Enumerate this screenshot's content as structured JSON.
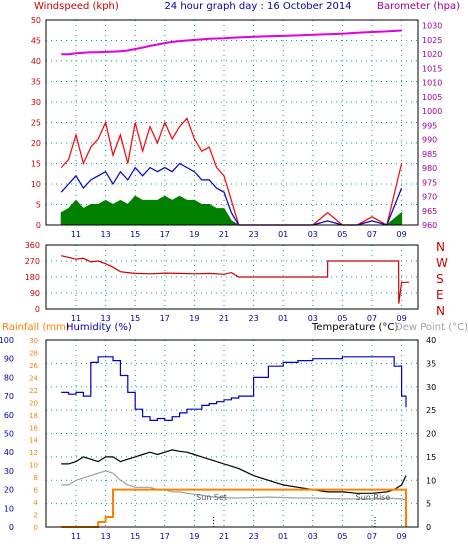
{
  "header": {
    "left_label": "Windspeed (kph)",
    "center_title": "24 hour graph day : 16 October 2014",
    "right_label": "Barometer (hpa)"
  },
  "colors": {
    "wind_gust": "#ff0000",
    "wind_avg": "#0000cc",
    "wind_low": "#008000",
    "barometer": "#e000e0",
    "direction": "#cc0000",
    "rainfall": "#ff8000",
    "humidity": "#0000cc",
    "temperature": "#000000",
    "dewpoint": "#a0a0a0",
    "grid": "#00a0a0",
    "axis_red": "#cc0000",
    "axis_blue": "#0000aa",
    "axis_purple": "#990099"
  },
  "chart_data": [
    {
      "type": "line",
      "x_tick_labels": [
        "11",
        "13",
        "15",
        "17",
        "19",
        "21",
        "23",
        "01",
        "03",
        "05",
        "07",
        "09"
      ],
      "x": [
        10,
        10.5,
        11,
        11.5,
        12,
        12.5,
        13,
        13.5,
        14,
        14.5,
        15,
        15.5,
        16,
        16.5,
        17,
        17.5,
        18,
        18.5,
        19,
        19.5,
        20,
        20.5,
        21,
        21.5,
        22,
        23,
        24,
        25,
        26,
        27,
        28,
        29,
        30,
        31,
        32,
        33
      ],
      "left_axis": {
        "title": "Windspeed (kph)",
        "ylim": [
          0,
          50
        ],
        "ticks": [
          0,
          5,
          10,
          15,
          20,
          25,
          30,
          35,
          40,
          45,
          50
        ]
      },
      "right_axis": {
        "title": "Barometer (hpa)",
        "ylim": [
          960,
          1032
        ],
        "ticks": [
          960,
          965,
          970,
          975,
          980,
          985,
          990,
          995,
          1000,
          1005,
          1010,
          1015,
          1020,
          1025,
          1030
        ]
      },
      "series": [
        {
          "values": [
            14,
            16,
            22,
            15,
            19,
            21,
            25,
            17,
            22,
            15,
            25,
            18,
            24,
            20,
            25,
            21,
            24,
            26,
            21,
            18,
            19,
            14,
            12,
            6,
            0,
            0,
            0,
            0,
            0,
            0,
            3,
            0,
            0,
            2,
            0,
            15
          ]
        },
        {
          "values": [
            8,
            10,
            12,
            9,
            11,
            12,
            13,
            10,
            13,
            11,
            14,
            12,
            14,
            13,
            14,
            13,
            15,
            14,
            13,
            11,
            11,
            9,
            8,
            3,
            0,
            0,
            0,
            0,
            0,
            0,
            1,
            0,
            0,
            1,
            0,
            9
          ]
        },
        {
          "values": [
            3,
            4,
            6,
            4,
            5,
            5,
            6,
            5,
            6,
            5,
            7,
            6,
            6,
            6,
            7,
            6,
            7,
            6,
            6,
            5,
            5,
            4,
            4,
            1,
            0,
            0,
            0,
            0,
            0,
            0,
            0,
            0,
            0,
            0,
            0,
            3
          ]
        },
        {
          "values": [
            1020.0,
            1020.0,
            1020.3,
            1020.5,
            1020.7,
            1020.7,
            1020.8,
            1020.9,
            1021.0,
            1021.3,
            1021.8,
            1022.3,
            1022.9,
            1023.4,
            1023.9,
            1024.3,
            1024.6,
            1024.8,
            1025.0,
            1025.2,
            1025.4,
            1025.5,
            1025.6,
            1025.8,
            1025.9,
            1026.1,
            1026.3,
            1026.4,
            1026.6,
            1026.8,
            1027.0,
            1027.2,
            1027.5,
            1027.8,
            1028.0,
            1028.3
          ]
        }
      ]
    },
    {
      "type": "line",
      "x_tick_labels": [
        "11",
        "13",
        "15",
        "17",
        "19",
        "21",
        "23",
        "01",
        "03",
        "05",
        "07",
        "09"
      ],
      "left_axis": {
        "ylim": [
          0,
          360
        ],
        "ticks": [
          0,
          90,
          180,
          270,
          360
        ]
      },
      "right_axis": {
        "tick_labels": [
          "N",
          "W",
          "S",
          "E",
          "N"
        ]
      },
      "series": [
        {
          "x": [
            10,
            10.5,
            11,
            11.5,
            12,
            12.5,
            13,
            13.5,
            14,
            14.5,
            15,
            16,
            17,
            18,
            19,
            20,
            21,
            21.5,
            22,
            23,
            24,
            25,
            26,
            27,
            28,
            28.01,
            29,
            30,
            31,
            32,
            32.8,
            32.81,
            33,
            33.5
          ],
          "values": [
            300,
            290,
            280,
            285,
            265,
            270,
            255,
            235,
            210,
            205,
            200,
            198,
            202,
            200,
            198,
            200,
            195,
            205,
            180,
            180,
            180,
            180,
            180,
            180,
            180,
            270,
            270,
            270,
            270,
            270,
            270,
            30,
            150,
            150
          ]
        }
      ]
    },
    {
      "type": "line",
      "x_tick_labels": [
        "11",
        "13",
        "15",
        "17",
        "19",
        "21",
        "23",
        "01",
        "03",
        "05",
        "07",
        "09"
      ],
      "header": {
        "rainfall": "Rainfall (mm)",
        "humidity": "Humidity (%)",
        "temperature": "Temperature (°C)",
        "dewpoint": "Dew Point (°C)"
      },
      "axis_humidity": {
        "ylim": [
          0,
          100
        ],
        "ticks": [
          0,
          10,
          20,
          30,
          40,
          50,
          60,
          70,
          80,
          90,
          100
        ]
      },
      "axis_rain": {
        "ylim": [
          0,
          30
        ],
        "ticks": [
          0,
          2,
          4,
          6,
          8,
          10,
          12,
          14,
          16,
          18,
          20,
          22,
          24,
          26,
          28,
          30
        ]
      },
      "axis_temp": {
        "ylim": [
          0,
          40
        ],
        "ticks": [
          0,
          5,
          10,
          15,
          20,
          25,
          30,
          35,
          40
        ]
      },
      "annotations": [
        "Sun Set",
        "Sun Rise"
      ],
      "x": [
        10,
        10.5,
        11,
        11.5,
        12,
        12.5,
        13,
        13.5,
        14,
        14.5,
        15,
        15.5,
        16,
        16.5,
        17,
        17.5,
        18,
        18.5,
        19,
        19.5,
        20,
        20.5,
        21,
        21.5,
        22,
        23,
        24,
        25,
        26,
        27,
        28,
        29,
        30,
        31,
        32,
        32.5,
        33,
        33.3
      ],
      "series": [
        {
          "values": [
            72,
            71,
            72,
            70,
            88,
            91,
            91,
            89,
            81,
            72,
            63,
            59,
            57,
            58,
            57,
            59,
            61,
            63,
            63,
            65,
            66,
            67,
            68,
            69,
            70,
            80,
            86,
            88,
            89,
            90,
            90,
            91,
            91,
            91,
            91,
            86,
            70,
            64
          ]
        },
        {
          "values": [
            13.5,
            13.5,
            14,
            15,
            14.5,
            14,
            15,
            15,
            14,
            14.5,
            15,
            15.5,
            16,
            15.5,
            16,
            16.5,
            16.2,
            16,
            15.5,
            15,
            14.5,
            14,
            13.5,
            13,
            12.5,
            11,
            10,
            9,
            8.5,
            8,
            7.5,
            7.5,
            7.2,
            7.2,
            7.5,
            8,
            9,
            11
          ]
        },
        {
          "values": [
            9,
            9,
            10,
            10.5,
            11,
            11.5,
            12,
            11.5,
            10,
            9,
            8.5,
            8.5,
            8.5,
            8,
            8,
            7.5,
            7.5,
            7.2,
            7,
            6.8,
            6.5,
            6.4,
            6.3,
            6.2,
            6.2,
            6.3,
            6.4,
            6.3,
            6.2,
            6.2,
            6.1,
            6.0,
            6.0,
            6.0,
            6.1,
            6.1,
            6.0,
            5.8
          ]
        },
        {
          "values": [
            0,
            0,
            0,
            0,
            0,
            0.8,
            1.6,
            6,
            6,
            6,
            6,
            6,
            6,
            6,
            6,
            6,
            6,
            6,
            6,
            6,
            6,
            6,
            6,
            6,
            6,
            6,
            6,
            6,
            6,
            6,
            6,
            6,
            6,
            6,
            6,
            6,
            6,
            0
          ]
        }
      ]
    }
  ]
}
